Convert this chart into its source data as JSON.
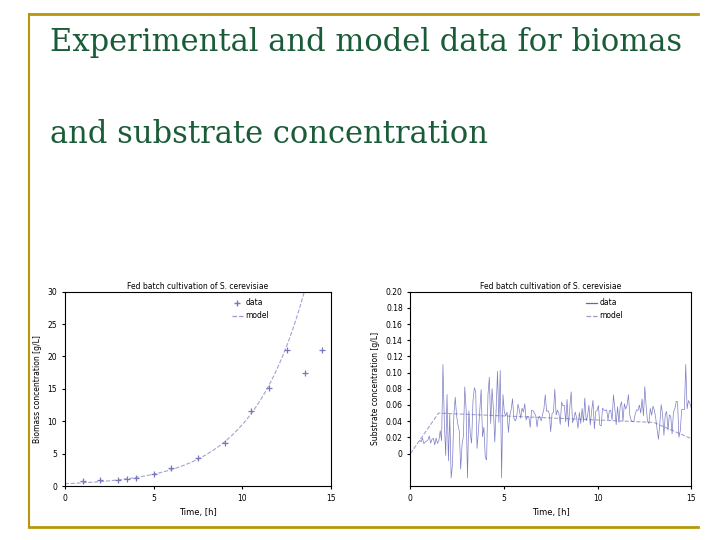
{
  "title_line1": "Experimental and model data for biomas",
  "title_line2": "and substrate concentration",
  "title_color": "#1a5c38",
  "title_fontsize": 22,
  "background_color": "#ffffff",
  "border_color": "#b8960c",
  "subplot1": {
    "plot_title": "Fed batch cultivation of S. cerevisiae",
    "xlabel": "Time, [h]",
    "ylabel": "Biomass concentration [g/L]",
    "xlim": [
      0,
      15
    ],
    "ylim": [
      0,
      30
    ],
    "yticks": [
      0,
      5,
      10,
      15,
      20,
      25,
      30
    ],
    "xticks": [
      0,
      5,
      10,
      15
    ],
    "data_color": "#7777bb",
    "model_color": "#9999cc"
  },
  "subplot2": {
    "plot_title": "Fed batch cultivation of S. cerevisiae",
    "xlabel": "Time, [h]",
    "ylabel": "Substrate concentration [g/L]",
    "xlim": [
      0,
      15
    ],
    "ylim": [
      0,
      0.2
    ],
    "yticks": [
      0,
      0.02,
      0.04,
      0.06,
      0.08,
      0.1,
      0.12,
      0.14,
      0.16,
      0.18,
      0.2
    ],
    "xticks": [
      0,
      5,
      10,
      15
    ],
    "data_color": "#6666bb",
    "model_color": "#9999cc"
  }
}
